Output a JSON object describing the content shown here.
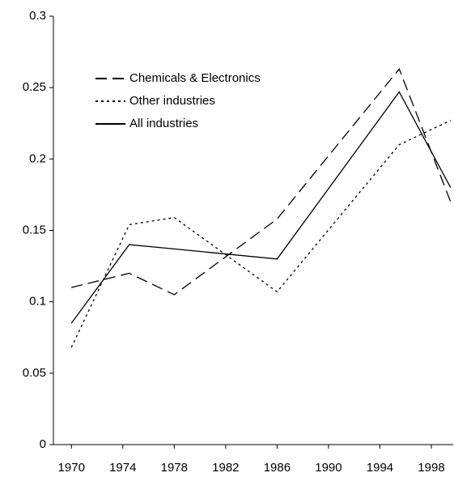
{
  "chart_data": {
    "type": "line",
    "x": [
      1970,
      1974.5,
      1978,
      1986,
      1995.5,
      1999.5
    ],
    "series": [
      {
        "name": "Chemicals & Electronics",
        "color": "#000000",
        "style": "dashed",
        "values": [
          0.11,
          0.12,
          0.105,
          0.158,
          0.263,
          0.17
        ]
      },
      {
        "name": "Other industries",
        "color": "#000000",
        "style": "dotted",
        "values": [
          0.068,
          0.154,
          0.159,
          0.107,
          0.21,
          0.227
        ]
      },
      {
        "name": "All industries",
        "color": "#000000",
        "style": "solid",
        "values": [
          0.085,
          0.14,
          0.137,
          0.13,
          0.247,
          0.18
        ]
      }
    ],
    "xlim": [
      1968.6,
      1999.7
    ],
    "xticks": [
      1970,
      1974,
      1978,
      1982,
      1986,
      1990,
      1994,
      1998
    ],
    "ylim": [
      0,
      0.3
    ],
    "yticks": [
      0,
      0.05,
      0.1,
      0.15,
      0.2,
      0.25,
      0.3
    ],
    "grid": false,
    "legend": "upper-left"
  }
}
